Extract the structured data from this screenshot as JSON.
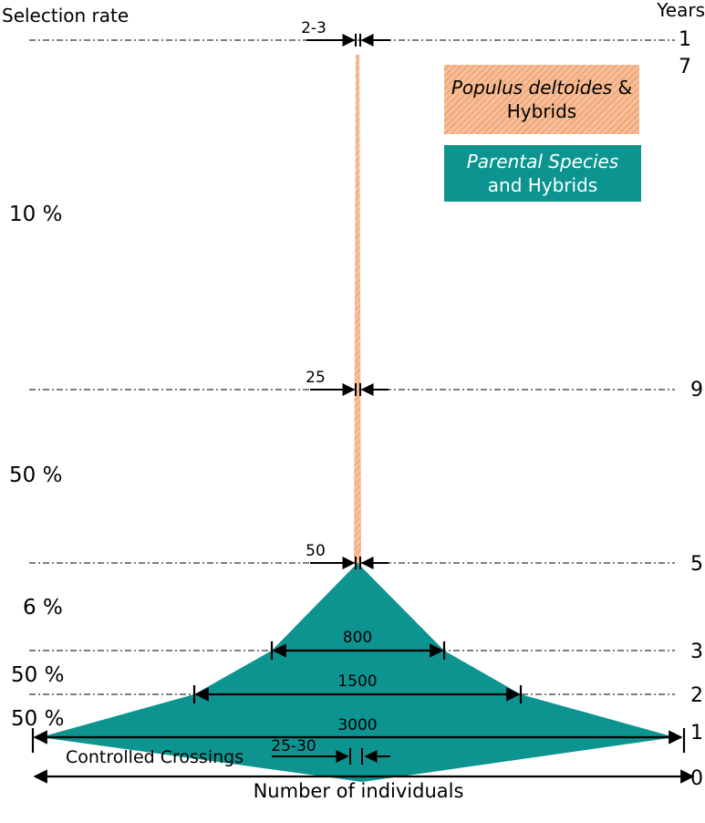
{
  "axis": {
    "left_title": "Selection rate",
    "right_title": "Years",
    "bottom_label": "Number of individuals"
  },
  "selection_rates": [
    "10 %",
    "50 %",
    "6 %",
    "50 %",
    "50 %"
  ],
  "years": [
    "1",
    "7",
    "9",
    "5",
    "3",
    "2",
    "1",
    "0"
  ],
  "counts": {
    "top": "2-3",
    "mid": "25",
    "neck": "50",
    "w800": "800",
    "w1500": "1500",
    "w3000": "3000",
    "crossing": "25-30"
  },
  "crossing_label": "Controlled Crossings",
  "legend": {
    "poplar_italic": "Populus deltoides",
    "poplar_rest": " &",
    "poplar_line2": "Hybrids",
    "parental_italic": "Parental Species",
    "parental_line2": "and Hybrids"
  },
  "colors": {
    "teal": "#0d9490",
    "peach": "#f6c09a",
    "peach_stripe": "#f0a77a",
    "dashes": "#555555"
  }
}
